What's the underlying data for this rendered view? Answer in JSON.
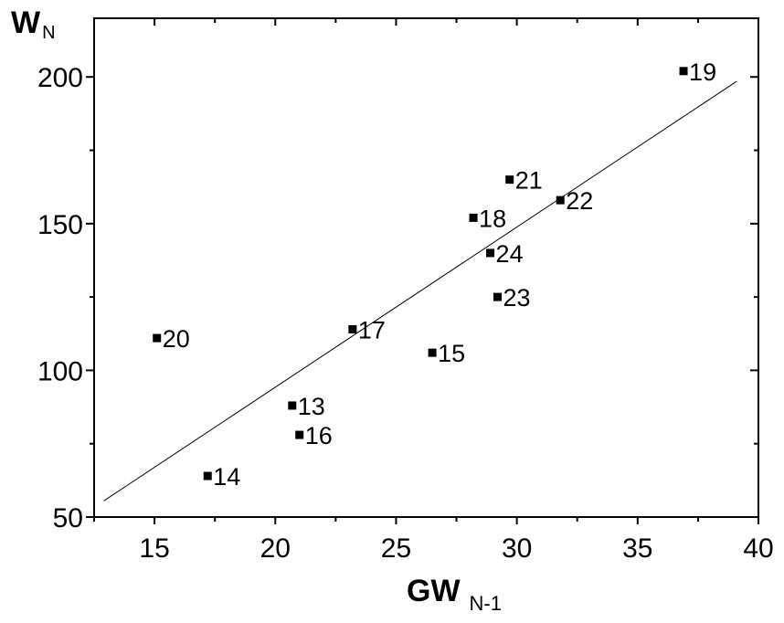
{
  "chart_data": {
    "type": "scatter",
    "title": "",
    "xlabel": {
      "main": "GW",
      "sub": "N-1"
    },
    "ylabel": {
      "main": "W",
      "sub": "N"
    },
    "xlim": [
      12.5,
      40
    ],
    "ylim": [
      50,
      220
    ],
    "xticks": [
      15,
      20,
      25,
      30,
      35,
      40
    ],
    "yticks": [
      50,
      100,
      150,
      200
    ],
    "grid": false,
    "points": [
      {
        "label": "13",
        "x": 20.7,
        "y": 88
      },
      {
        "label": "14",
        "x": 17.2,
        "y": 64
      },
      {
        "label": "15",
        "x": 26.5,
        "y": 106
      },
      {
        "label": "16",
        "x": 21.0,
        "y": 78
      },
      {
        "label": "17",
        "x": 23.2,
        "y": 114
      },
      {
        "label": "18",
        "x": 28.2,
        "y": 152
      },
      {
        "label": "19",
        "x": 36.9,
        "y": 202
      },
      {
        "label": "20",
        "x": 15.1,
        "y": 111
      },
      {
        "label": "21",
        "x": 29.7,
        "y": 165
      },
      {
        "label": "22",
        "x": 31.8,
        "y": 158
      },
      {
        "label": "23",
        "x": 29.2,
        "y": 125
      },
      {
        "label": "24",
        "x": 28.9,
        "y": 140
      }
    ],
    "fit_line": {
      "x": [
        12.9,
        39.1
      ],
      "y": [
        55.5,
        198.5
      ]
    }
  }
}
